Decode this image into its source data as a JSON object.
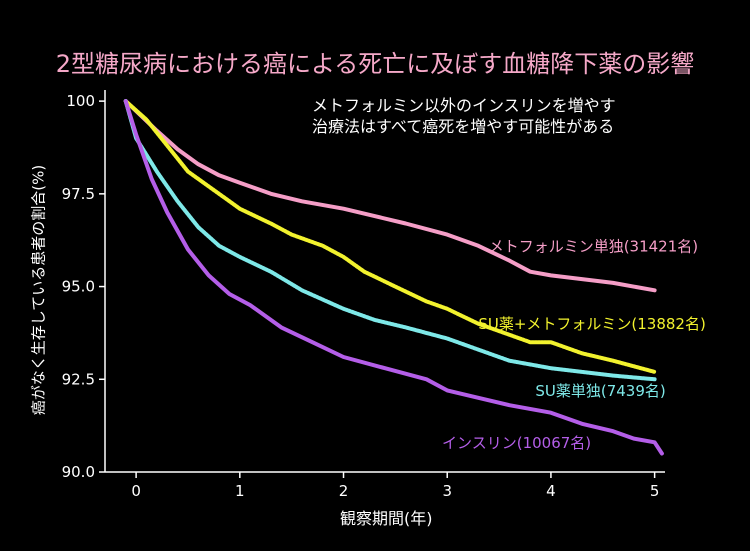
{
  "title": "2型糖尿病における癌による死亡に及ぼす血糖降下薬の影響",
  "annotation": {
    "line1": "メトフォルミン以外のインスリンを増やす",
    "line2": "治療法はすべて癌死を増やす可能性がある"
  },
  "chart_data": {
    "type": "line",
    "title": "2型糖尿病における癌による死亡に及ぼす血糖降下薬の影響",
    "xlabel": "観察期間(年)",
    "ylabel": "癌がなく生存している患者の割合(%)",
    "xlim": [
      -0.3,
      5.1
    ],
    "ylim": [
      90.0,
      100.3
    ],
    "xticks": [
      0,
      1,
      2,
      3,
      4,
      5
    ],
    "xtick_labels": [
      "0",
      "1",
      "2",
      "3",
      "4",
      "5"
    ],
    "yticks": [
      90.0,
      92.5,
      95.0,
      97.5,
      100.0
    ],
    "ytick_labels": [
      "90.0",
      "92.5",
      "95.0",
      "97.5",
      "100"
    ],
    "grid": false,
    "series": [
      {
        "name": "メトフォルミン単独(31421名)",
        "color": "#f59ec7",
        "x": [
          -0.1,
          0.2,
          0.4,
          0.6,
          0.8,
          1.0,
          1.3,
          1.6,
          2.0,
          2.3,
          2.6,
          3.0,
          3.3,
          3.6,
          3.8,
          4.0,
          4.3,
          4.6,
          5.0
        ],
        "y": [
          100.0,
          99.2,
          98.7,
          98.3,
          98.0,
          97.8,
          97.5,
          97.3,
          97.1,
          96.9,
          96.7,
          96.4,
          96.1,
          95.7,
          95.4,
          95.3,
          95.2,
          95.1,
          94.9
        ]
      },
      {
        "name": "SU薬+メトフォルミン(13882名)",
        "color": "#f2f22e",
        "x": [
          -0.1,
          0.1,
          0.3,
          0.5,
          0.7,
          1.0,
          1.3,
          1.5,
          1.8,
          2.0,
          2.2,
          2.5,
          2.8,
          3.0,
          3.3,
          3.5,
          3.8,
          4.0,
          4.3,
          4.6,
          5.0
        ],
        "y": [
          100.0,
          99.5,
          98.8,
          98.1,
          97.7,
          97.1,
          96.7,
          96.4,
          96.1,
          95.8,
          95.4,
          95.0,
          94.6,
          94.4,
          94.0,
          93.8,
          93.5,
          93.5,
          93.2,
          93.0,
          92.7
        ]
      },
      {
        "name": "SU薬単独(7439名)",
        "color": "#7ee8e8",
        "x": [
          -0.1,
          0.0,
          0.2,
          0.4,
          0.6,
          0.8,
          1.0,
          1.3,
          1.6,
          2.0,
          2.3,
          2.6,
          3.0,
          3.3,
          3.6,
          4.0,
          4.3,
          4.6,
          5.0
        ],
        "y": [
          100.0,
          99.0,
          98.1,
          97.3,
          96.6,
          96.1,
          95.8,
          95.4,
          94.9,
          94.4,
          94.1,
          93.9,
          93.6,
          93.3,
          93.0,
          92.8,
          92.7,
          92.6,
          92.5
        ]
      },
      {
        "name": "インスリン(10067名)",
        "color": "#b45ee8",
        "x": [
          -0.1,
          0.0,
          0.15,
          0.3,
          0.5,
          0.7,
          0.9,
          1.1,
          1.4,
          1.7,
          2.0,
          2.4,
          2.8,
          3.0,
          3.3,
          3.6,
          4.0,
          4.3,
          4.6,
          4.8,
          5.0,
          5.07
        ],
        "y": [
          100.0,
          99.1,
          97.9,
          97.0,
          96.0,
          95.3,
          94.8,
          94.5,
          93.9,
          93.5,
          93.1,
          92.8,
          92.5,
          92.2,
          92.0,
          91.8,
          91.6,
          91.3,
          91.1,
          90.9,
          90.8,
          90.5
        ]
      }
    ],
    "legend_labels": [
      {
        "text": "メトフォルミン単独(31421名)",
        "color": "#f59ec7",
        "x": 3.4,
        "y": 95.95
      },
      {
        "text": "SU薬+メトフォルミン(13882名)",
        "color": "#f2f22e",
        "x": 3.3,
        "y": 93.85
      },
      {
        "text": "SU薬単独(7439名)",
        "color": "#7ee8e8",
        "x": 3.85,
        "y": 92.05
      },
      {
        "text": "インスリン(10067名)",
        "color": "#b45ee8",
        "x": 2.95,
        "y": 90.65
      }
    ]
  }
}
